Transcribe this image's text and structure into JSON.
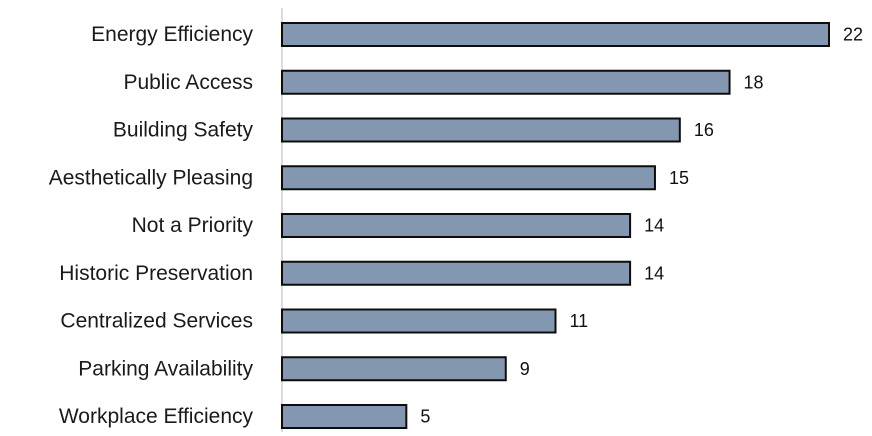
{
  "chart_data": {
    "type": "bar",
    "orientation": "horizontal",
    "categories": [
      "Energy Efficiency",
      "Public Access",
      "Building Safety",
      "Aesthetically Pleasing",
      "Not a Priority",
      "Historic Preservation",
      "Centralized Services",
      "Parking Availability",
      "Workplace Efficiency"
    ],
    "values": [
      22,
      18,
      16,
      15,
      14,
      14,
      11,
      9,
      5
    ],
    "title": "",
    "xlabel": "",
    "ylabel": "",
    "xlim": [
      0,
      22
    ],
    "grid": false,
    "legend": "none",
    "data_labels": true,
    "bar_color": "#8497b0",
    "bar_edge_color": "#0d0d0d"
  }
}
